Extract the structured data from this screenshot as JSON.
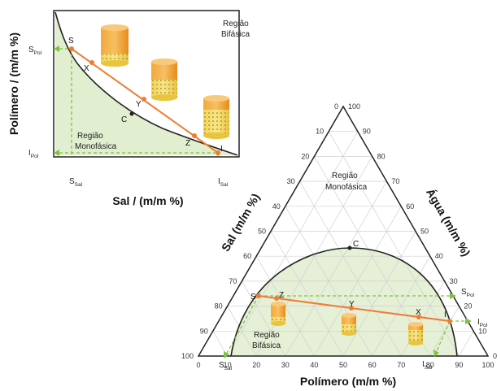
{
  "left_diagram": {
    "y_axis_title": "Polímero / (m/m %)",
    "x_axis_title": "Sal / (m/m %)",
    "region_top_line1": "Região",
    "region_top_line2": "Bifásica",
    "region_bottom_line1": "Região",
    "region_bottom_line2": "Monofásica",
    "point_S": "S",
    "point_X": "X",
    "point_Y": "Y",
    "point_C": "C",
    "point_Z": "Z",
    "point_I": "I",
    "s_pol_main": "S",
    "s_pol_sub": "Pol",
    "i_pol_main": "I",
    "i_pol_sub": "Pol",
    "s_sal_main": "S",
    "s_sal_sub": "Sal",
    "i_sal_main": "I",
    "i_sal_sub": "Sal"
  },
  "ternary_diagram": {
    "left_axis_title": "Sal (m/m %)",
    "right_axis_title": "Água (m/m %)",
    "bottom_axis_title": "Polímero (m/m %)",
    "left_ticks": [
      "0",
      "10",
      "20",
      "30",
      "40",
      "50",
      "60",
      "70",
      "80",
      "90",
      "100"
    ],
    "right_ticks": [
      "100",
      "90",
      "80",
      "70",
      "60",
      "50",
      "40",
      "30",
      "20",
      "10",
      "0"
    ],
    "bottom_ticks": [
      "0",
      "10",
      "20",
      "30",
      "40",
      "50",
      "60",
      "70",
      "80",
      "90",
      "100"
    ],
    "region_mono_line1": "Região",
    "region_mono_line2": "Monofásica",
    "region_bi_line1": "Região",
    "region_bi_line2": "Bifásica",
    "point_C": "C",
    "point_S": "S",
    "point_Z": "Z",
    "point_Y": "Y",
    "point_X": "X",
    "point_I": "I",
    "s_pol_main": "S",
    "s_pol_sub": "Pol",
    "i_pol_main": "I",
    "i_pol_sub": "Pol",
    "s_sal_main": "S",
    "s_sal_sub": "Sal",
    "i_sal_main": "I",
    "i_sal_sub": "Sal"
  },
  "colors": {
    "tie_line": "#ee7d31",
    "guide": "#7ec242",
    "region_fill": "#dcebc8",
    "tube": "#f2a93a",
    "tube_dark": "#e88a1a",
    "tube_light": "#f7dc6a"
  }
}
